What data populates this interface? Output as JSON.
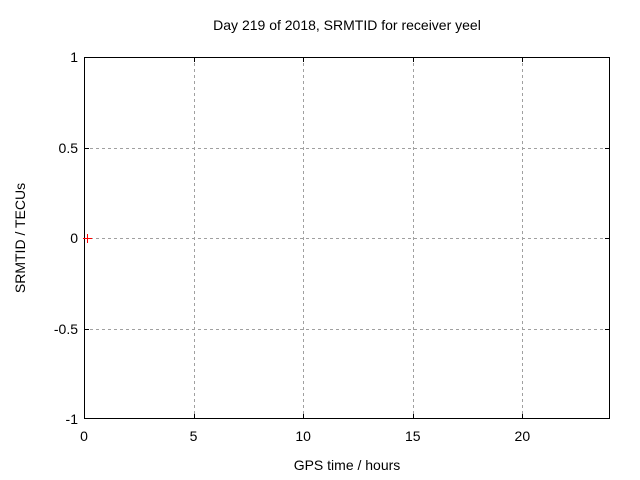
{
  "page": {
    "background_color": "#ffffff",
    "text_color": "#000000"
  },
  "chart_data": {
    "type": "scatter",
    "title": "Day 219 of 2018, SRMTID for receiver yeel",
    "xlabel": "GPS time / hours",
    "ylabel": "SRMTID / TECUs",
    "xlim": [
      0,
      24
    ],
    "ylim": [
      -1,
      1
    ],
    "xticks": [
      0,
      5,
      10,
      15,
      20
    ],
    "xtick_labels": [
      "0",
      "5",
      "10",
      "15",
      "20"
    ],
    "yticks": [
      1,
      0.5,
      0,
      -0.5,
      -1
    ],
    "ytick_labels": [
      "1",
      "0.5",
      "0",
      "-0.5",
      "-1"
    ],
    "grid": true,
    "grid_color": "#a0a0a0",
    "border_color": "#000000",
    "legend": "none",
    "series": [
      {
        "name": "SRMTID",
        "marker": "plus",
        "color": "#ff0000",
        "points": [
          {
            "x": 0.14,
            "y": 0
          }
        ]
      }
    ]
  }
}
